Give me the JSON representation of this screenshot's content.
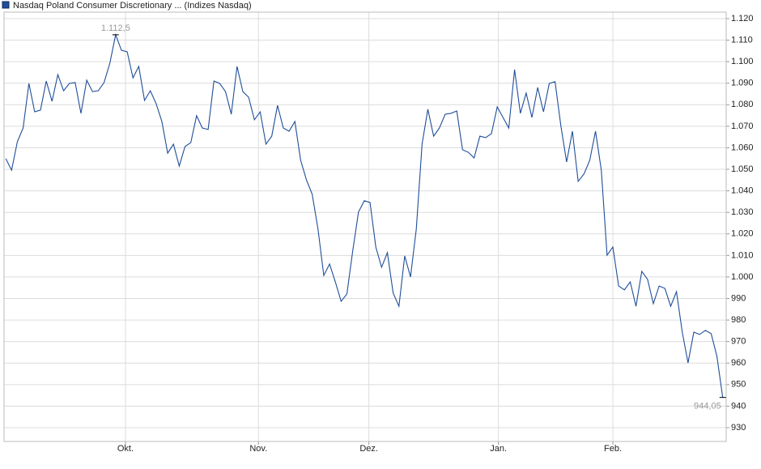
{
  "chart_data": {
    "type": "line",
    "title": "Nasdaq Poland Consumer Discretionary ... (Indizes Nasdaq)",
    "color": "#1f4e9a",
    "grid": true,
    "values": [
      1055,
      1049.6,
      1062.8,
      1069.2,
      1089.9,
      1076.7,
      1077.5,
      1091,
      1081.6,
      1094,
      1086.5,
      1089.9,
      1090.3,
      1076,
      1091.4,
      1086.1,
      1086.5,
      1090.3,
      1099.3,
      1112.5,
      1105.3,
      1104.6,
      1092.5,
      1097.8,
      1082,
      1086.5,
      1080.5,
      1072.2,
      1057.5,
      1061.7,
      1051.5,
      1060.6,
      1062.4,
      1074.9,
      1069.2,
      1068.5,
      1091,
      1089.9,
      1086.1,
      1075.6,
      1097.8,
      1086.1,
      1083.5,
      1073,
      1076.7,
      1061.7,
      1065.4,
      1079.7,
      1069.2,
      1067.7,
      1072.2,
      1054.2,
      1045.1,
      1038.4,
      1022.2,
      1000.7,
      1006,
      997.7,
      988.7,
      992.1,
      1012,
      1030.1,
      1035.4,
      1034.6,
      1013.9,
      1004.5,
      1011.3,
      992.5,
      986.4,
      1009.8,
      1000,
      1022.2,
      1061.7,
      1077.9,
      1065.4,
      1069.2,
      1075.6,
      1076,
      1077.1,
      1059.1,
      1057.9,
      1055.3,
      1065.4,
      1064.7,
      1066.6,
      1079,
      1074.1,
      1069.2,
      1096.3,
      1076,
      1085.4,
      1074.1,
      1088,
      1076.7,
      1089.9,
      1090.7,
      1070.3,
      1053.4,
      1067.7,
      1044.4,
      1047.8,
      1054.2,
      1067.7,
      1049.6,
      1010.1,
      1013.9,
      995.8,
      994,
      997.7,
      986.4,
      1002.6,
      998.9,
      987.6,
      995.8,
      994.7,
      986.4,
      993.2,
      974.4,
      960.1,
      974.4,
      973.3,
      975.2,
      973.7,
      963.1,
      944.05
    ],
    "xlim": [
      -0.3,
      124.6
    ],
    "xticks": [
      {
        "value": 20.7,
        "label": "Okt."
      },
      {
        "value": 43.7,
        "label": "Nov."
      },
      {
        "value": 62.8,
        "label": "Dez."
      },
      {
        "value": 85.2,
        "label": "Jan."
      },
      {
        "value": 105,
        "label": "Feb."
      }
    ],
    "ylim": [
      923.6,
      1123
    ],
    "yticks": [
      930,
      940,
      950,
      960,
      970,
      980,
      990,
      {
        "value": 1000,
        "label": "1.000"
      },
      {
        "value": 1010,
        "label": "1.010"
      },
      {
        "value": 1020,
        "label": "1.020"
      },
      {
        "value": 1030,
        "label": "1.030"
      },
      {
        "value": 1040,
        "label": "1.040"
      },
      {
        "value": 1050,
        "label": "1.050"
      },
      {
        "value": 1060,
        "label": "1.060"
      },
      {
        "value": 1070,
        "label": "1.070"
      },
      {
        "value": 1080,
        "label": "1.080"
      },
      {
        "value": 1090,
        "label": "1.090"
      },
      {
        "value": 1100,
        "label": "1.100"
      },
      {
        "value": 1110,
        "label": "1.110"
      },
      {
        "value": 1120,
        "label": "1.120"
      }
    ],
    "annotations": [
      {
        "index": 19,
        "value": 1112.5,
        "label": "1.112,5"
      },
      {
        "index": 124,
        "value": 944.05,
        "label": "944,05"
      }
    ]
  }
}
